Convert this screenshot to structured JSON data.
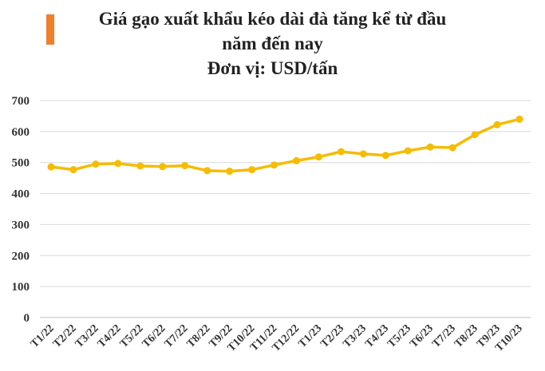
{
  "header": {
    "title_line1": "Giá gạo xuất khẩu kéo dài đà tăng kể từ đầu",
    "title_line2": "năm đến nay",
    "title_line3": "Đơn vị: USD/tấn",
    "accent_color": "#f07f2b"
  },
  "chart_data": {
    "type": "line",
    "title": "Giá gạo xuất khẩu kéo dài đà tăng kể từ đầu năm đến nay",
    "subtitle": "Đơn vị: USD/tấn",
    "xlabel": "",
    "ylabel": "",
    "categories": [
      "T1/22",
      "T2/22",
      "T3/22",
      "T4/22",
      "T5/22",
      "T6/22",
      "T7/22",
      "T8/22",
      "T9/22",
      "T10/22",
      "T11/22",
      "T12/22",
      "T1/23",
      "T2/23",
      "T3/23",
      "T4/23",
      "T5/23",
      "T6/23",
      "T7/23",
      "T8/23",
      "T9/23",
      "T10/23"
    ],
    "series": [
      {
        "values": [
          486,
          477,
          495,
          497,
          489,
          487,
          490,
          474,
          472,
          477,
          492,
          506,
          518,
          535,
          528,
          523,
          538,
          550,
          548,
          590,
          622,
          640
        ],
        "color": "#f5bc00"
      }
    ],
    "yticks": [
      0,
      100,
      200,
      300,
      400,
      500,
      600,
      700
    ],
    "ylim": [
      0,
      700
    ],
    "grid": true,
    "legend": "none"
  }
}
